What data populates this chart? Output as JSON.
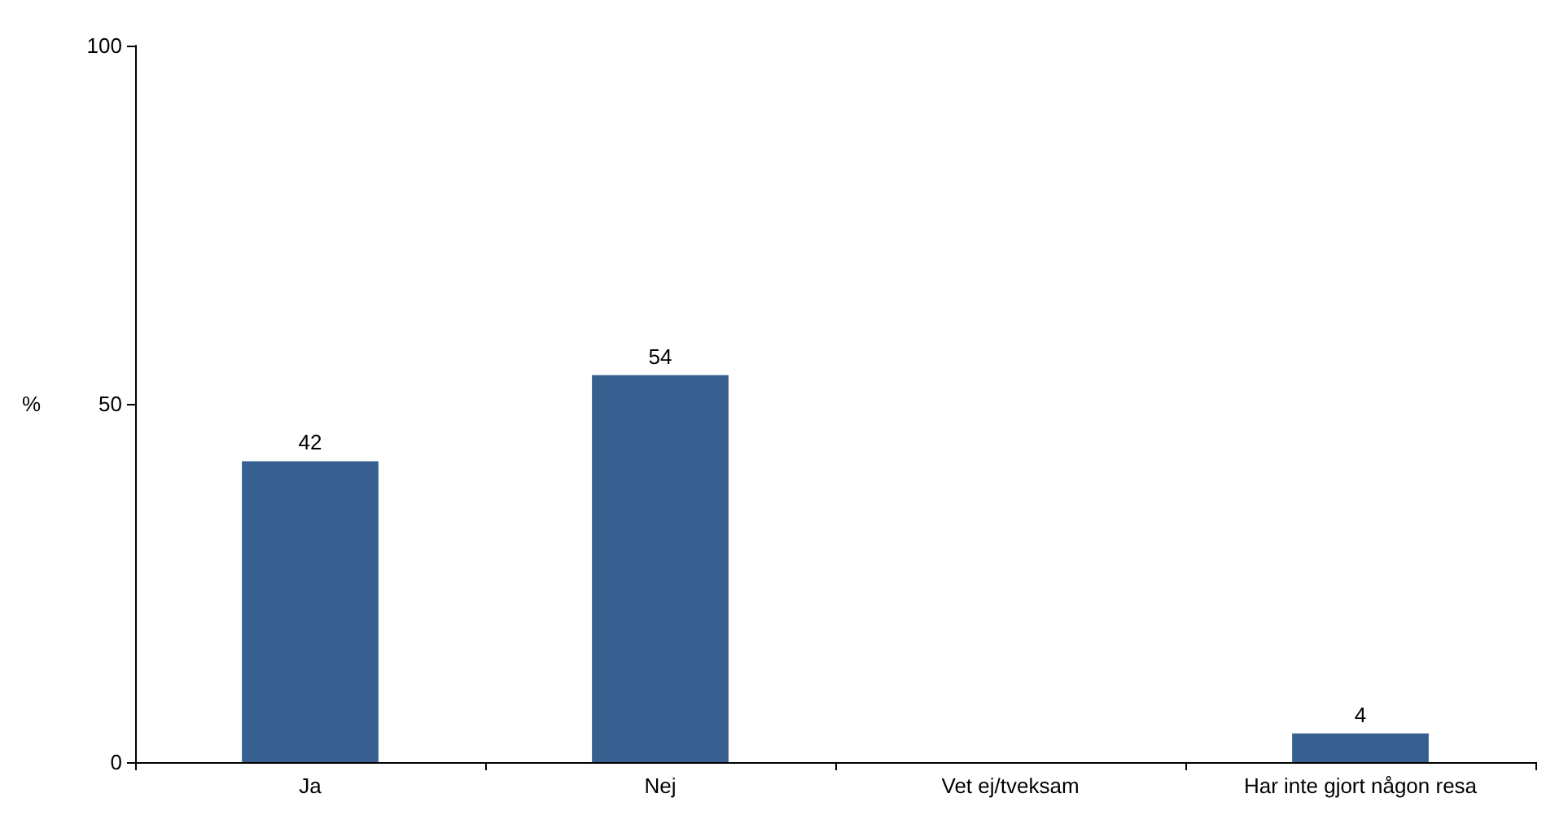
{
  "chart_data": {
    "type": "bar",
    "ylabel": "%",
    "categories": [
      "Ja",
      "Nej",
      "Vet ej/tveksam",
      "Har inte gjort någon resa"
    ],
    "values": [
      42,
      54,
      0,
      4
    ],
    "value_labels": [
      "42",
      "54",
      null,
      "4"
    ],
    "color": "#375f8f",
    "ylim": [
      0,
      100
    ],
    "yticks": [
      0,
      50,
      100
    ],
    "grid": false
  }
}
